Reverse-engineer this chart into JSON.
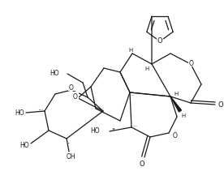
{
  "bg_color": "#ffffff",
  "line_color": "#1a1a1a",
  "line_width": 0.9,
  "font_size": 5.5,
  "figsize": [
    2.76,
    2.28
  ],
  "dpi": 100,
  "xlim": [
    0,
    276
  ],
  "ylim": [
    0,
    228
  ]
}
